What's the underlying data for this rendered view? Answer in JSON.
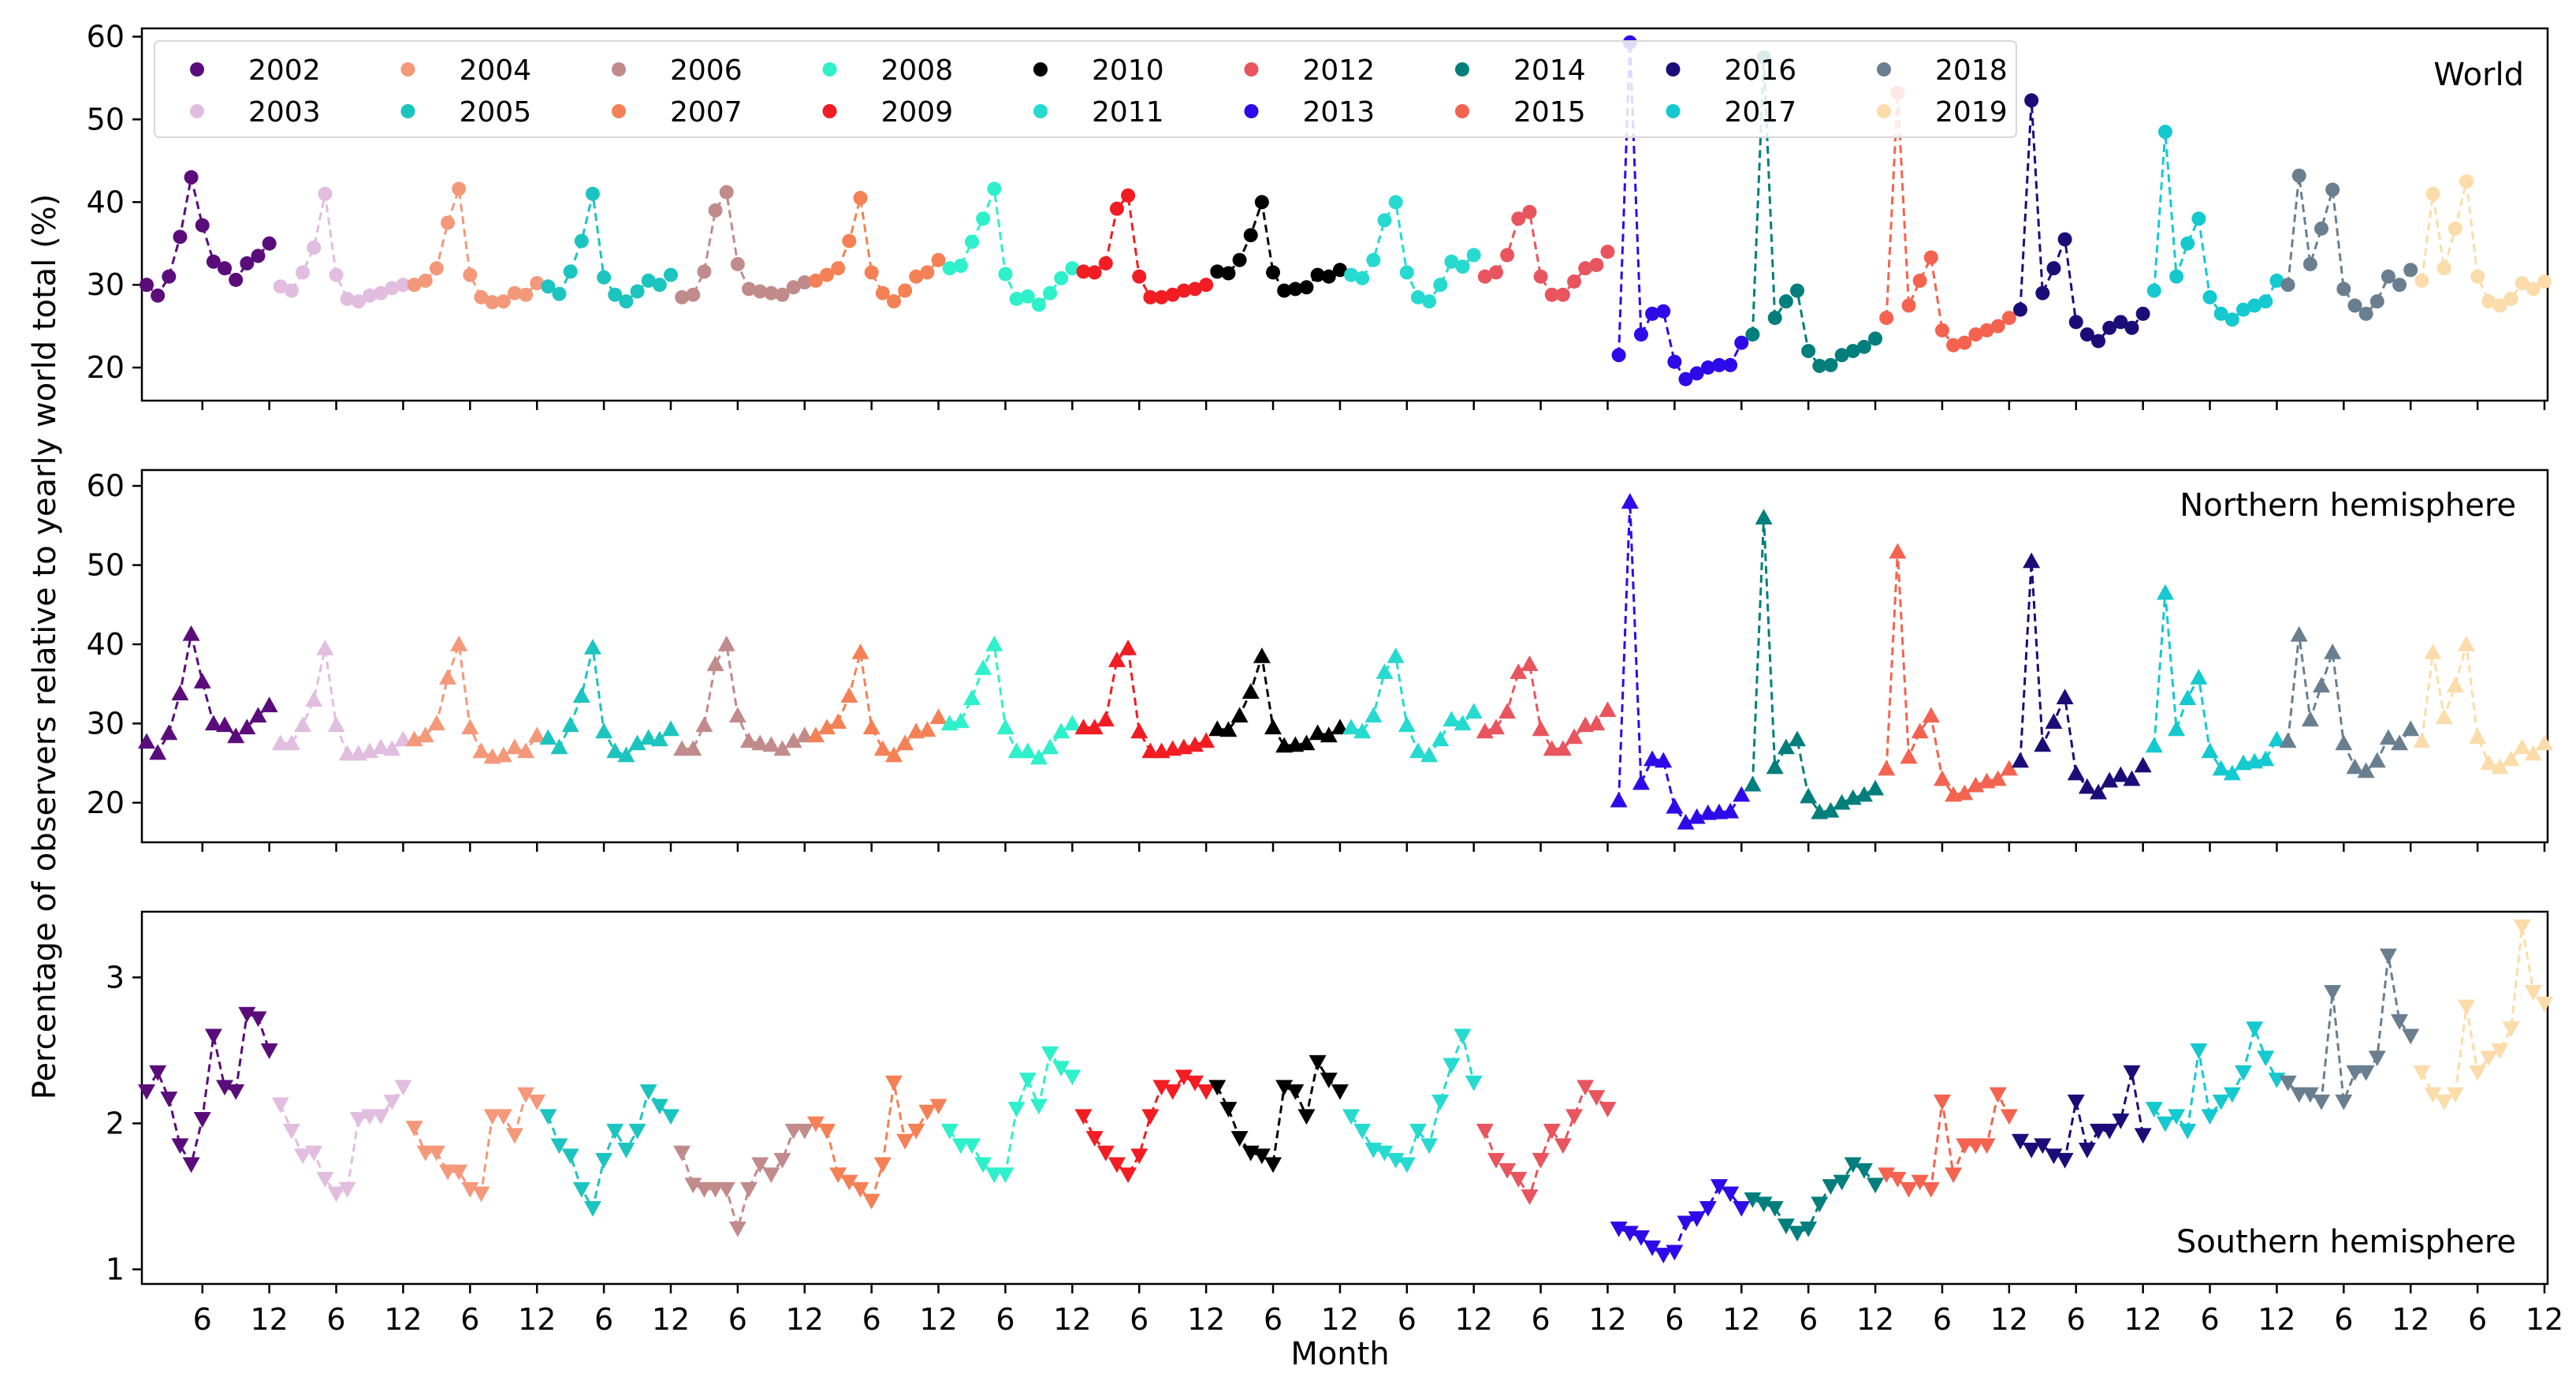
{
  "chart_data": {
    "type": "line",
    "xlabel": "Month",
    "ylabel": "Percentage of observers relative to yearly world total (%)",
    "x_ticks": [
      "6",
      "12"
    ],
    "marker_style": "dashed line with markers; circles (World), up-triangles (Northern hemisphere), down-triangles (Southern hemisphere)",
    "legend": {
      "placement": "top-left of the World panel",
      "entries": [
        "2002",
        "2003",
        "2004",
        "2005",
        "2006",
        "2007",
        "2008",
        "2009",
        "2010",
        "2011",
        "2012",
        "2013",
        "2014",
        "2015",
        "2016",
        "2017",
        "2018",
        "2019"
      ]
    },
    "years": [
      "2002",
      "2003",
      "2004",
      "2005",
      "2006",
      "2007",
      "2008",
      "2009",
      "2010",
      "2011",
      "2012",
      "2013",
      "2014",
      "2015",
      "2016",
      "2017",
      "2018",
      "2019"
    ],
    "colors": {
      "2002": "#5a0d7a",
      "2003": "#e1bde0",
      "2004": "#f4987a",
      "2005": "#1cc4bf",
      "2006": "#c18b8b",
      "2007": "#f48155",
      "2008": "#2ef0cb",
      "2009": "#f21c23",
      "2010": "#000000",
      "2011": "#26dad0",
      "2012": "#e8555e",
      "2013": "#2d0be8",
      "2014": "#027e7c",
      "2015": "#f36350",
      "2016": "#1b0d78",
      "2017": "#14c9cf",
      "2018": "#697f90",
      "2019": "#fbdcaa"
    },
    "panels": [
      {
        "label": "World",
        "marker": "circle",
        "ylim": [
          16,
          61
        ],
        "yticks": [
          20,
          30,
          40,
          50,
          60
        ],
        "series": {
          "2002": [
            30,
            28.7,
            31,
            35.8,
            43,
            37.2,
            32.8,
            32,
            30.6,
            32.6,
            33.5,
            35
          ],
          "2003": [
            29.8,
            29.3,
            31.5,
            34.5,
            41,
            31.2,
            28.3,
            28,
            28.7,
            29,
            29.6,
            30
          ],
          "2004": [
            30,
            30.5,
            32,
            37.5,
            41.6,
            31.2,
            28.5,
            27.9,
            28,
            29,
            28.8,
            30.2
          ],
          "2005": [
            29.8,
            28.9,
            31.6,
            35.3,
            41,
            30.9,
            28.8,
            28,
            29.2,
            30.5,
            30,
            31.2
          ],
          "2006": [
            28.5,
            28.8,
            31.6,
            39,
            41.2,
            32.5,
            29.5,
            29.2,
            29,
            28.8,
            29.7,
            30.3
          ],
          "2007": [
            30.5,
            31.2,
            32,
            35.3,
            40.5,
            31.5,
            29,
            28,
            29.3,
            31,
            31.5,
            33
          ],
          "2008": [
            32,
            32.3,
            35.2,
            38,
            41.6,
            31.3,
            28.3,
            28.6,
            27.6,
            29,
            30.8,
            32
          ],
          "2009": [
            31.6,
            31.5,
            32.6,
            39.2,
            40.8,
            31,
            28.5,
            28.5,
            28.8,
            29.3,
            29.5,
            30
          ],
          "2010": [
            31.6,
            31.4,
            33,
            36,
            40,
            31.5,
            29.3,
            29.5,
            29.7,
            31.2,
            31,
            31.8
          ],
          "2011": [
            31.2,
            30.8,
            33,
            37.8,
            40,
            31.5,
            28.5,
            28,
            30,
            32.8,
            32.2,
            33.6
          ],
          "2012": [
            31,
            31.5,
            33.6,
            38,
            38.8,
            31,
            28.8,
            28.8,
            30.4,
            32,
            32.4,
            34
          ],
          "2013": [
            21.5,
            59.3,
            24,
            26.5,
            26.8,
            20.7,
            18.6,
            19.3,
            20,
            20.3,
            20.3,
            23
          ],
          "2014": [
            24,
            57.5,
            26,
            28,
            29.3,
            22,
            20.2,
            20.3,
            21.5,
            22,
            22.5,
            23.5
          ],
          "2015": [
            26,
            53.2,
            27.5,
            30.5,
            33.3,
            24.5,
            22.7,
            23,
            24,
            24.5,
            25,
            26
          ],
          "2016": [
            27,
            52.3,
            29,
            32,
            35.5,
            25.5,
            24,
            23.2,
            24.8,
            25.5,
            24.8,
            26.5
          ],
          "2017": [
            29.3,
            48.5,
            31,
            35,
            38,
            28.5,
            26.5,
            25.8,
            27,
            27.5,
            28,
            30.5
          ],
          "2018": [
            30,
            43.2,
            32.5,
            36.8,
            41.5,
            29.5,
            27.5,
            26.5,
            28,
            31,
            30,
            31.8
          ],
          "2019": [
            30.5,
            41,
            32,
            36.8,
            42.5,
            31,
            28,
            27.5,
            28.3,
            30.2,
            29.5,
            30.4
          ]
        }
      },
      {
        "label": "Northern hemisphere",
        "marker": "triangle-up",
        "ylim": [
          15,
          62
        ],
        "yticks": [
          20,
          30,
          40,
          50,
          60
        ],
        "series": {
          "2002": [
            27.7,
            26.3,
            28.8,
            33.8,
            41.3,
            35.3,
            30,
            29.8,
            28.4,
            29.5,
            31,
            32.3
          ],
          "2003": [
            27.5,
            27.5,
            29.8,
            33,
            39.5,
            29.8,
            26.2,
            26.2,
            26.5,
            27,
            26.8,
            28
          ],
          "2004": [
            28,
            28.5,
            30,
            35.8,
            40,
            29.5,
            26.5,
            25.8,
            26,
            27,
            26.5,
            28.5
          ],
          "2005": [
            28.2,
            27,
            29.8,
            33.5,
            39.6,
            29,
            26.5,
            26,
            27.5,
            28.2,
            28,
            29.3
          ],
          "2006": [
            26.8,
            26.8,
            29.8,
            37.5,
            40,
            31,
            27.8,
            27.5,
            27.3,
            26.8,
            27.8,
            28.5
          ],
          "2007": [
            28.5,
            29.5,
            30.2,
            33.5,
            39,
            29.5,
            26.8,
            26,
            27.5,
            29,
            29.2,
            30.8
          ],
          "2008": [
            30,
            30.3,
            33.2,
            37,
            40,
            29.5,
            26.5,
            26.5,
            25.7,
            27,
            29,
            30
          ],
          "2009": [
            29.5,
            29.5,
            30.5,
            38,
            39.5,
            29,
            26.5,
            26.5,
            26.8,
            27,
            27.3,
            27.8
          ],
          "2010": [
            29.3,
            29.2,
            31,
            34,
            38.5,
            29.5,
            27.2,
            27.3,
            27.5,
            28.8,
            28.5,
            29.5
          ],
          "2011": [
            29.5,
            29,
            31,
            36.5,
            38.5,
            29.8,
            26.5,
            26,
            28,
            30.5,
            30,
            31.5
          ],
          "2012": [
            29,
            29.5,
            31.5,
            36.5,
            37.5,
            29.3,
            26.8,
            26.8,
            28.3,
            29.8,
            30,
            31.7
          ],
          "2013": [
            20.3,
            58,
            22.5,
            25.5,
            25.3,
            19.5,
            17.5,
            18.2,
            18.7,
            18.8,
            18.9,
            21
          ],
          "2014": [
            22.3,
            56,
            24.5,
            27,
            28,
            20.8,
            18.8,
            19,
            20,
            20.6,
            21,
            21.8
          ],
          "2015": [
            24.3,
            51.7,
            25.8,
            29,
            31,
            23,
            21,
            21.2,
            22.2,
            22.7,
            23,
            24.3
          ],
          "2016": [
            25.3,
            50.5,
            27.3,
            30.2,
            33.3,
            23.7,
            22,
            21.3,
            22.8,
            23.5,
            23,
            24.7
          ],
          "2017": [
            27.2,
            46.5,
            29.3,
            33.2,
            35.8,
            26.5,
            24.3,
            23.7,
            25,
            25.2,
            25.5,
            28
          ],
          "2018": [
            27.8,
            41.2,
            30.5,
            34.8,
            39,
            27.5,
            24.5,
            24,
            25.3,
            28.2,
            27.5,
            29.3
          ],
          "2019": [
            27.8,
            39,
            30.8,
            34.8,
            40,
            28.3,
            25,
            24.5,
            25.5,
            27,
            26.2,
            27.5
          ]
        }
      },
      {
        "label": "Southern hemisphere",
        "marker": "triangle-down",
        "ylim": [
          0.9,
          3.45
        ],
        "yticks": [
          1,
          2,
          3
        ],
        "series": {
          "2002": [
            2.22,
            2.35,
            2.17,
            1.85,
            1.72,
            2.03,
            2.6,
            2.25,
            2.22,
            2.75,
            2.72,
            2.5
          ],
          "2003": [
            2.13,
            1.95,
            1.78,
            1.8,
            1.62,
            1.52,
            1.55,
            2.03,
            2.05,
            2.05,
            2.15,
            2.25
          ],
          "2004": [
            1.97,
            1.8,
            1.8,
            1.67,
            1.67,
            1.55,
            1.52,
            2.05,
            2.05,
            1.92,
            2.2,
            2.15
          ],
          "2005": [
            2.05,
            1.85,
            1.78,
            1.55,
            1.42,
            1.75,
            1.95,
            1.82,
            1.95,
            2.22,
            2.12,
            2.05
          ],
          "2006": [
            1.8,
            1.58,
            1.55,
            1.55,
            1.55,
            1.28,
            1.55,
            1.72,
            1.65,
            1.75,
            1.95,
            1.95
          ],
          "2007": [
            2,
            1.95,
            1.65,
            1.6,
            1.55,
            1.47,
            1.72,
            2.28,
            1.88,
            1.95,
            2.08,
            2.12
          ],
          "2008": [
            1.95,
            1.85,
            1.85,
            1.72,
            1.65,
            1.65,
            2.1,
            2.3,
            2.12,
            2.48,
            2.38,
            2.32
          ],
          "2009": [
            2.05,
            1.9,
            1.8,
            1.72,
            1.65,
            1.78,
            2.05,
            2.25,
            2.22,
            2.32,
            2.28,
            2.22
          ],
          "2010": [
            2.25,
            2.1,
            1.9,
            1.8,
            1.78,
            1.72,
            2.25,
            2.22,
            2.05,
            2.42,
            2.3,
            2.22
          ],
          "2011": [
            2.05,
            1.95,
            1.82,
            1.8,
            1.75,
            1.72,
            1.95,
            1.85,
            2.15,
            2.4,
            2.6,
            2.28
          ],
          "2012": [
            1.95,
            1.75,
            1.68,
            1.62,
            1.5,
            1.75,
            1.95,
            1.85,
            2.05,
            2.25,
            2.18,
            2.1
          ],
          "2013": [
            1.28,
            1.25,
            1.22,
            1.15,
            1.1,
            1.12,
            1.32,
            1.35,
            1.42,
            1.57,
            1.52,
            1.42
          ],
          "2014": [
            1.48,
            1.45,
            1.42,
            1.3,
            1.25,
            1.28,
            1.45,
            1.57,
            1.6,
            1.72,
            1.68,
            1.58
          ],
          "2015": [
            1.65,
            1.62,
            1.55,
            1.6,
            1.55,
            2.15,
            1.65,
            1.85,
            1.85,
            1.85,
            2.2,
            2.05
          ],
          "2016": [
            1.88,
            1.82,
            1.85,
            1.78,
            1.75,
            2.15,
            1.82,
            1.95,
            1.95,
            2.02,
            2.35,
            1.92
          ],
          "2017": [
            2.1,
            2,
            2.05,
            1.95,
            2.5,
            2.05,
            2.15,
            2.2,
            2.35,
            2.65,
            2.45,
            2.3
          ],
          "2018": [
            2.28,
            2.2,
            2.2,
            2.15,
            2.9,
            2.15,
            2.35,
            2.35,
            2.45,
            3.15,
            2.7,
            2.6
          ],
          "2019": [
            2.35,
            2.2,
            2.15,
            2.2,
            2.8,
            2.35,
            2.45,
            2.5,
            2.65,
            3.35,
            2.9,
            2.82
          ]
        }
      }
    ]
  }
}
